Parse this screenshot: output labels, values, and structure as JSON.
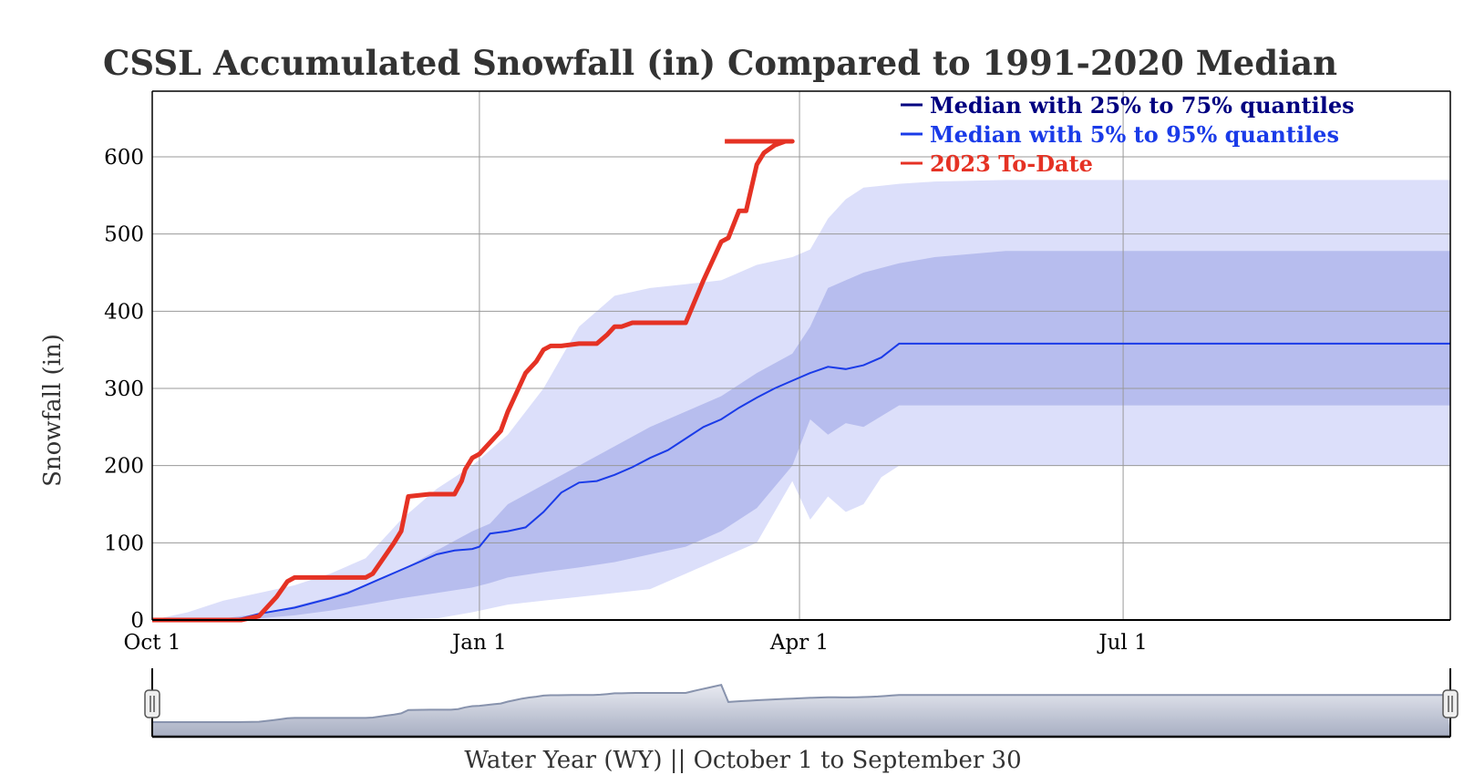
{
  "chart_data": {
    "type": "area",
    "title": "CSSL Accumulated Snowfall (in) Compared to 1991-2020 Median",
    "ylabel": "Snowfall (in)",
    "xlabel": "Water Year (WY) || October 1 to September 30",
    "xlim": [
      0,
      365
    ],
    "ylim": [
      0,
      685
    ],
    "y_ticks": [
      0,
      100,
      200,
      300,
      400,
      500,
      600
    ],
    "x_ticks": [
      {
        "label": "Oct 1",
        "day": 0
      },
      {
        "label": "Jan 1",
        "day": 92
      },
      {
        "label": "Apr 1",
        "day": 182
      },
      {
        "label": "Jul 1",
        "day": 273
      }
    ],
    "grid": true,
    "legend_position": "top-right",
    "legend": [
      {
        "label": "Median with 25% to 75% quantiles",
        "color": "#000080"
      },
      {
        "label": "Median with 5% to 95% quantiles",
        "color": "#1a3be8"
      },
      {
        "label": "2023 To-Date",
        "color": "#e53224"
      }
    ],
    "colors": {
      "band_5_95": "#dcdffa",
      "band_25_75": "#b7bdee",
      "median": "#1a3be8",
      "to_date": "#e53224",
      "navigator_fill": "#c9ccd8",
      "navigator_line": "#8893ad"
    },
    "series": [
      {
        "name": "Median",
        "x": [
          0,
          5,
          10,
          15,
          20,
          25,
          30,
          35,
          40,
          45,
          50,
          55,
          60,
          65,
          70,
          75,
          80,
          85,
          90,
          92,
          95,
          100,
          105,
          110,
          115,
          120,
          125,
          130,
          135,
          140,
          145,
          150,
          155,
          160,
          165,
          170,
          175,
          180,
          185,
          190,
          195,
          200,
          205,
          210,
          365
        ],
        "y": [
          0,
          0,
          0,
          0,
          0,
          2,
          8,
          12,
          16,
          22,
          28,
          35,
          45,
          55,
          65,
          75,
          85,
          90,
          92,
          95,
          112,
          115,
          120,
          140,
          165,
          178,
          180,
          188,
          198,
          210,
          220,
          235,
          250,
          260,
          275,
          288,
          300,
          310,
          320,
          328,
          325,
          330,
          340,
          358,
          358
        ]
      },
      {
        "name": "25th percentile",
        "x": [
          0,
          10,
          20,
          30,
          40,
          50,
          60,
          70,
          80,
          90,
          95,
          100,
          110,
          120,
          130,
          140,
          150,
          160,
          170,
          180,
          185,
          190,
          195,
          200,
          210,
          220,
          365
        ],
        "y": [
          0,
          0,
          0,
          2,
          6,
          12,
          20,
          28,
          35,
          42,
          48,
          55,
          62,
          68,
          75,
          85,
          95,
          115,
          145,
          200,
          260,
          240,
          255,
          250,
          278,
          278,
          278
        ]
      },
      {
        "name": "75th percentile",
        "x": [
          0,
          10,
          20,
          30,
          40,
          50,
          60,
          70,
          80,
          90,
          95,
          100,
          110,
          120,
          130,
          140,
          150,
          160,
          170,
          180,
          185,
          190,
          195,
          200,
          210,
          220,
          240,
          365
        ],
        "y": [
          0,
          0,
          2,
          8,
          18,
          30,
          45,
          65,
          90,
          115,
          125,
          150,
          175,
          200,
          225,
          250,
          270,
          290,
          320,
          345,
          380,
          430,
          440,
          450,
          462,
          470,
          478,
          478
        ]
      },
      {
        "name": "5th percentile",
        "x": [
          0,
          20,
          40,
          60,
          80,
          90,
          100,
          120,
          140,
          150,
          155,
          160,
          170,
          180,
          185,
          190,
          195,
          200,
          205,
          210,
          365
        ],
        "y": [
          0,
          0,
          0,
          0,
          2,
          10,
          20,
          30,
          40,
          60,
          70,
          80,
          100,
          180,
          130,
          160,
          140,
          150,
          185,
          200,
          200
        ]
      },
      {
        "name": "95th percentile",
        "x": [
          0,
          10,
          20,
          30,
          40,
          50,
          60,
          70,
          80,
          90,
          100,
          110,
          120,
          130,
          140,
          150,
          160,
          170,
          180,
          185,
          190,
          195,
          200,
          210,
          220,
          240,
          365
        ],
        "y": [
          0,
          10,
          25,
          35,
          45,
          60,
          80,
          130,
          170,
          200,
          240,
          300,
          380,
          420,
          430,
          435,
          440,
          460,
          470,
          480,
          520,
          545,
          560,
          565,
          568,
          570,
          570
        ]
      },
      {
        "name": "2023 To-Date",
        "x": [
          0,
          25,
          30,
          32,
          35,
          38,
          40,
          42,
          55,
          60,
          62,
          65,
          68,
          70,
          72,
          78,
          80,
          82,
          85,
          87,
          88,
          90,
          92,
          95,
          98,
          100,
          102,
          105,
          108,
          110,
          112,
          115,
          120,
          125,
          128,
          130,
          132,
          135,
          140,
          145,
          150,
          155,
          157,
          160,
          162,
          165,
          167,
          170,
          172,
          175,
          178,
          180,
          161
        ],
        "y": [
          0,
          0,
          5,
          15,
          30,
          50,
          55,
          55,
          55,
          55,
          60,
          80,
          100,
          115,
          160,
          163,
          163,
          163,
          163,
          180,
          195,
          210,
          215,
          230,
          245,
          270,
          290,
          320,
          335,
          350,
          355,
          355,
          358,
          358,
          370,
          380,
          380,
          385,
          385,
          385,
          385,
          440,
          460,
          490,
          495,
          530,
          530,
          590,
          605,
          615,
          620,
          620,
          620
        ]
      }
    ]
  }
}
